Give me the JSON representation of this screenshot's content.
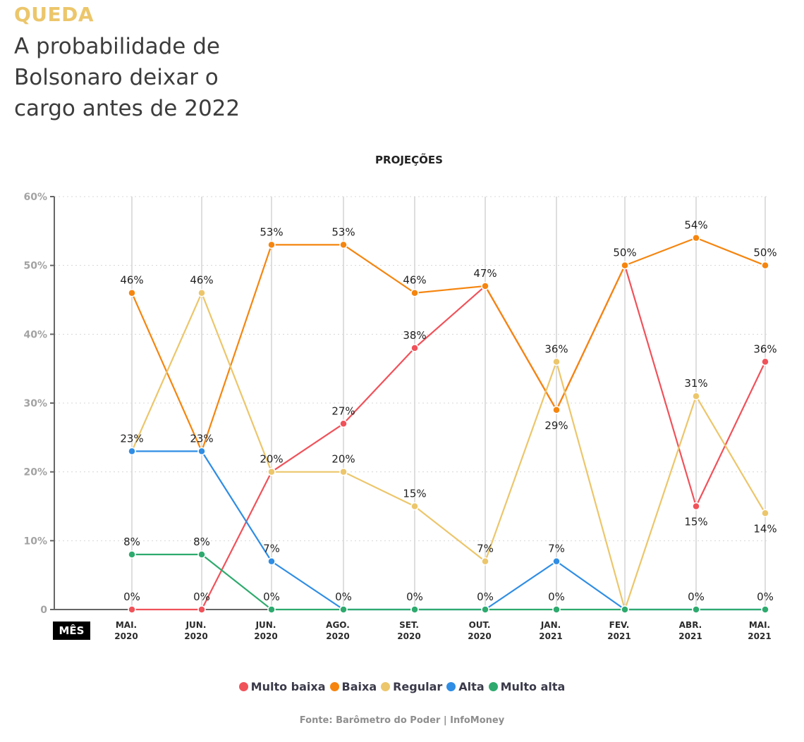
{
  "header": {
    "kicker": "QUEDA",
    "title_lines": [
      "A probabilidade de",
      "Bolsonaro deixar o",
      "cargo antes de 2022"
    ]
  },
  "chart_data": {
    "type": "line",
    "title": "PROJEÇÕES",
    "xlabel": "MÊS",
    "ylabel": "",
    "ylim": [
      0,
      60
    ],
    "yticks": [
      0,
      10,
      20,
      30,
      40,
      50,
      60
    ],
    "ytick_labels": [
      "0",
      "10%",
      "20%",
      "30%",
      "40%",
      "50%",
      "60%"
    ],
    "grid": true,
    "legend_position": "bottom",
    "categories": [
      [
        "MAI.",
        "2020"
      ],
      [
        "JUN.",
        "2020"
      ],
      [
        "JUN.",
        "2020"
      ],
      [
        "AGO.",
        "2020"
      ],
      [
        "SET.",
        "2020"
      ],
      [
        "OUT.",
        "2020"
      ],
      [
        "JAN.",
        "2021"
      ],
      [
        "FEV.",
        "2021"
      ],
      [
        "ABR.",
        "2021"
      ],
      [
        "MAI.",
        "2021"
      ]
    ],
    "series": [
      {
        "name": "Multo baixa",
        "color": "#f0525a",
        "values": [
          0,
          0,
          20,
          27,
          38,
          47,
          29,
          50,
          15,
          36
        ]
      },
      {
        "name": "Baixa",
        "color": "#f5850f",
        "values": [
          46,
          23,
          53,
          53,
          46,
          47,
          29,
          50,
          54,
          50
        ]
      },
      {
        "name": "Regular",
        "color": "#ecc66b",
        "values": [
          23,
          46,
          20,
          20,
          15,
          7,
          36,
          0,
          31,
          14
        ]
      },
      {
        "name": "Alta",
        "color": "#2f8de4",
        "values": [
          23,
          23,
          7,
          0,
          0,
          0,
          7,
          0,
          0,
          0
        ]
      },
      {
        "name": "Multo alta",
        "color": "#2eaa6e",
        "values": [
          8,
          8,
          0,
          0,
          0,
          0,
          0,
          0,
          0,
          0
        ]
      }
    ],
    "data_labels": [
      {
        "col": 0,
        "value": 46,
        "text": "46%",
        "pos": "above"
      },
      {
        "col": 0,
        "value": 23,
        "text": "23%",
        "pos": "above"
      },
      {
        "col": 0,
        "value": 8,
        "text": "8%",
        "pos": "above"
      },
      {
        "col": 0,
        "value": 0,
        "text": "0%",
        "pos": "above"
      },
      {
        "col": 1,
        "value": 46,
        "text": "46%",
        "pos": "above"
      },
      {
        "col": 1,
        "value": 23,
        "text": "23%",
        "pos": "above"
      },
      {
        "col": 1,
        "value": 8,
        "text": "8%",
        "pos": "above"
      },
      {
        "col": 1,
        "value": 0,
        "text": "0%",
        "pos": "above"
      },
      {
        "col": 2,
        "value": 53,
        "text": "53%",
        "pos": "above"
      },
      {
        "col": 2,
        "value": 20,
        "text": "20%",
        "pos": "above"
      },
      {
        "col": 2,
        "value": 7,
        "text": "7%",
        "pos": "above"
      },
      {
        "col": 2,
        "value": 0,
        "text": "0%",
        "pos": "above"
      },
      {
        "col": 3,
        "value": 53,
        "text": "53%",
        "pos": "above"
      },
      {
        "col": 3,
        "value": 27,
        "text": "27%",
        "pos": "above"
      },
      {
        "col": 3,
        "value": 20,
        "text": "20%",
        "pos": "above"
      },
      {
        "col": 3,
        "value": 0,
        "text": "0%",
        "pos": "above"
      },
      {
        "col": 4,
        "value": 46,
        "text": "46%",
        "pos": "above"
      },
      {
        "col": 4,
        "value": 38,
        "text": "38%",
        "pos": "above"
      },
      {
        "col": 4,
        "value": 15,
        "text": "15%",
        "pos": "above"
      },
      {
        "col": 4,
        "value": 0,
        "text": "0%",
        "pos": "above"
      },
      {
        "col": 5,
        "value": 47,
        "text": "47%",
        "pos": "above"
      },
      {
        "col": 5,
        "value": 7,
        "text": "7%",
        "pos": "above"
      },
      {
        "col": 5,
        "value": 0,
        "text": "0%",
        "pos": "above"
      },
      {
        "col": 6,
        "value": 36,
        "text": "36%",
        "pos": "above"
      },
      {
        "col": 6,
        "value": 29,
        "text": "29%",
        "pos": "below"
      },
      {
        "col": 6,
        "value": 7,
        "text": "7%",
        "pos": "above"
      },
      {
        "col": 6,
        "value": 0,
        "text": "0%",
        "pos": "above"
      },
      {
        "col": 7,
        "value": 50,
        "text": "50%",
        "pos": "above"
      },
      {
        "col": 8,
        "value": 54,
        "text": "54%",
        "pos": "above"
      },
      {
        "col": 8,
        "value": 31,
        "text": "31%",
        "pos": "above"
      },
      {
        "col": 8,
        "value": 15,
        "text": "15%",
        "pos": "below"
      },
      {
        "col": 8,
        "value": 0,
        "text": "0%",
        "pos": "above"
      },
      {
        "col": 9,
        "value": 50,
        "text": "50%",
        "pos": "above"
      },
      {
        "col": 9,
        "value": 36,
        "text": "36%",
        "pos": "above"
      },
      {
        "col": 9,
        "value": 14,
        "text": "14%",
        "pos": "below"
      },
      {
        "col": 9,
        "value": 0,
        "text": "0%",
        "pos": "above"
      }
    ]
  },
  "legend": [
    {
      "label": "Multo baixa",
      "color": "#f0525a"
    },
    {
      "label": "Baixa",
      "color": "#f5850f"
    },
    {
      "label": "Regular",
      "color": "#ecc66b"
    },
    {
      "label": "Alta",
      "color": "#2f8de4"
    },
    {
      "label": "Multo alta",
      "color": "#2eaa6e"
    }
  ],
  "source": "Fonte: Barômetro do Poder | InfoMoney"
}
